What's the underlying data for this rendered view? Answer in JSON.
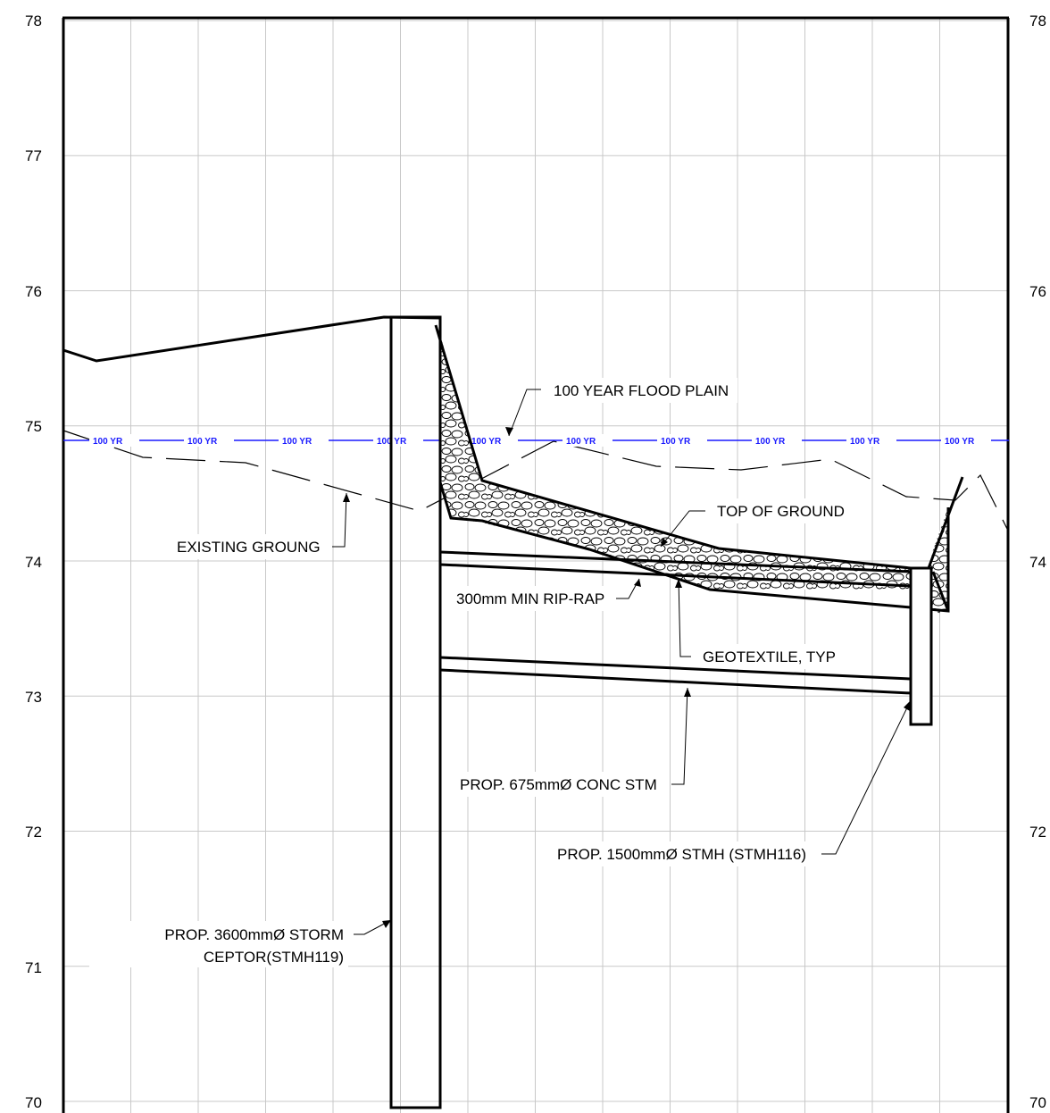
{
  "elevations": {
    "left": [
      "78",
      "77",
      "76",
      "75",
      "74",
      "73",
      "72",
      "71",
      "70"
    ],
    "right": [
      "78",
      "76",
      "74",
      "72",
      "70"
    ]
  },
  "flood_tag": "100 YR",
  "labels": {
    "flood_plain": "100 YEAR FLOOD PLAIN",
    "existing_ground": "EXISTING GROUNG",
    "top_of_ground": "TOP OF GROUND",
    "riprap": "300mm MIN RIP-RAP",
    "geotextile": "GEOTEXTILE, TYP",
    "conc_stm": "PROP. 675mmØ CONC STM",
    "stmh": "PROP. 1500mmØ STMH (STMH116)",
    "ceptor_line1": "PROP. 3600mmØ STORM",
    "ceptor_line2": "CEPTOR(STMH119)"
  },
  "colors": {
    "flood_line": "#1a1aff",
    "grid": "#c8c8c8",
    "ink": "#000000"
  }
}
